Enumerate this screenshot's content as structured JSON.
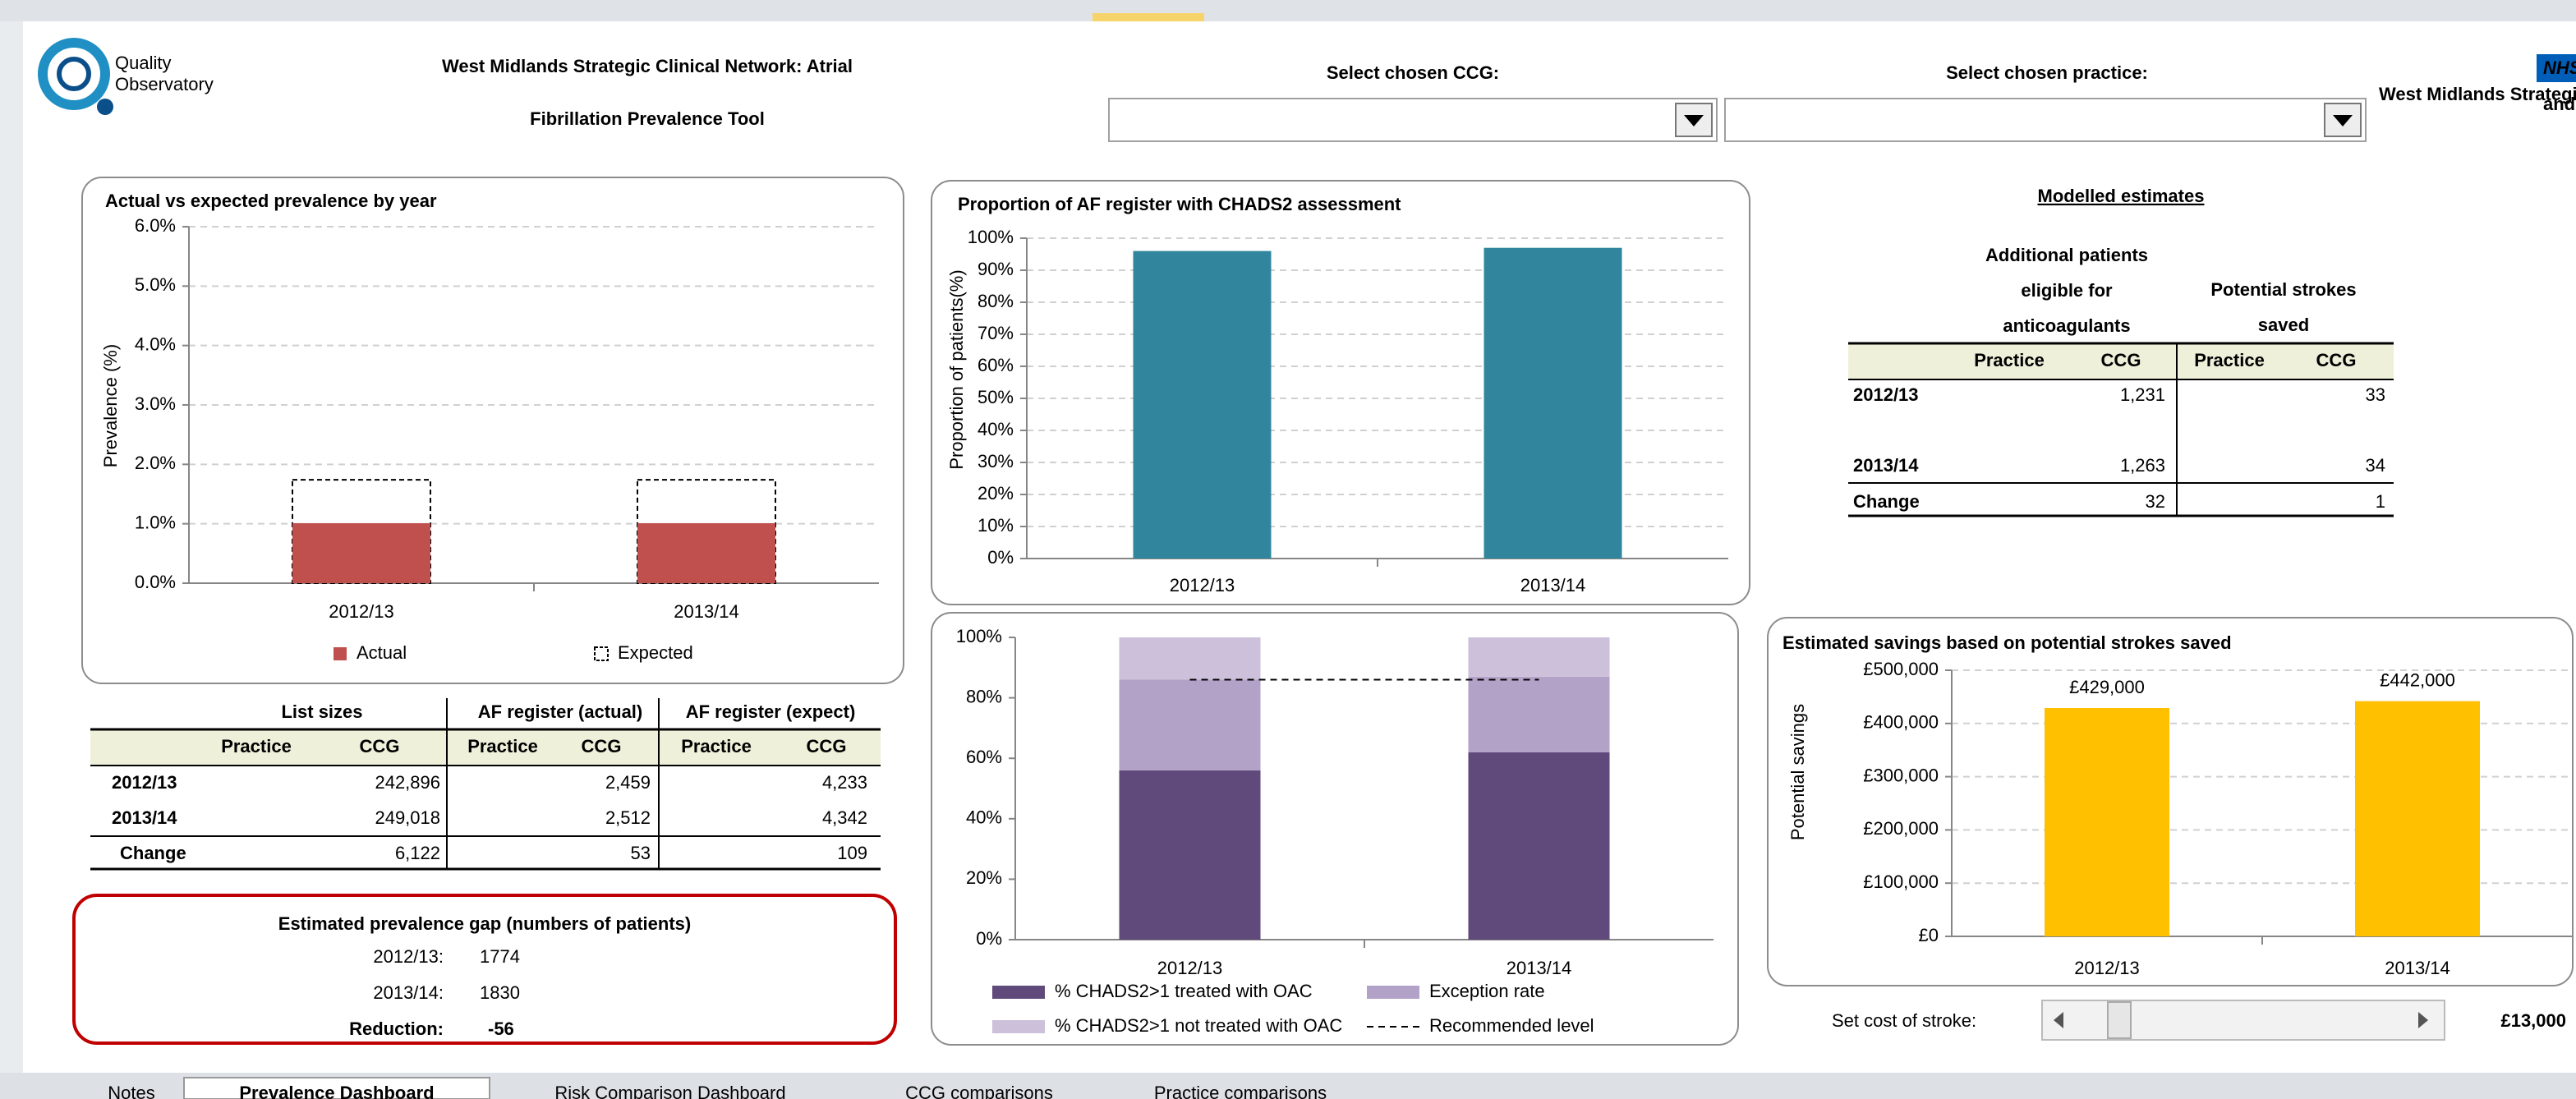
{
  "header": {
    "logo_lines": [
      "Quality",
      "Observatory"
    ],
    "title_lines": [
      "West Midlands Strategic Clinical Network: Atrial",
      "Fibrillation Prevalence Tool"
    ],
    "ccg_label": "Select chosen  CCG:",
    "practice_label": "Select chosen  practice:",
    "nhs": "NHS",
    "nhs_sub": [
      "West Midlands Strategic Clinical Net",
      "and Se"
    ]
  },
  "charts": [
    {
      "type": "bar",
      "overlap": true,
      "title": "Actual  vs expected prevalence  by year",
      "y_label": "Prevalence (%)",
      "categories": [
        "2012/13",
        "2013/14"
      ],
      "series": [
        {
          "name": "Actual",
          "color": "#c0504d",
          "values": [
            1.01,
            1.01
          ]
        },
        {
          "name": "Expected",
          "color": "#ffffff",
          "outline": "dashed",
          "values": [
            1.74,
            1.74
          ]
        }
      ],
      "ylim": [
        0,
        6
      ],
      "yticks": [
        {
          "value": 0,
          "label": "0.0%"
        },
        {
          "value": 1,
          "label": "1.0%"
        },
        {
          "value": 2,
          "label": "2.0%"
        },
        {
          "value": 3,
          "label": "3.0%"
        },
        {
          "value": 4,
          "label": "4.0%"
        },
        {
          "value": 5,
          "label": "5.0%"
        },
        {
          "value": 6,
          "label": "6.0%"
        }
      ],
      "grid": true
    },
    {
      "type": "bar",
      "title": "Proportion  of AF register with CHADS2 assessment",
      "y_label": "Proportion of patients(%)",
      "categories": [
        "2012/13",
        "2013/14"
      ],
      "series": [
        {
          "name": "Proportion",
          "color": "#31859c",
          "values": [
            96,
            97
          ]
        }
      ],
      "ylim": [
        0,
        100
      ],
      "yticks": [
        {
          "value": 0,
          "label": "0%"
        },
        {
          "value": 10,
          "label": "10%"
        },
        {
          "value": 20,
          "label": "20%"
        },
        {
          "value": 30,
          "label": "30%"
        },
        {
          "value": 40,
          "label": "40%"
        },
        {
          "value": 50,
          "label": "50%"
        },
        {
          "value": 60,
          "label": "60%"
        },
        {
          "value": 70,
          "label": "70%"
        },
        {
          "value": 80,
          "label": "80%"
        },
        {
          "value": 90,
          "label": "90%"
        },
        {
          "value": 100,
          "label": "100%"
        }
      ],
      "grid": true
    },
    {
      "type": "stacked_bar",
      "categories": [
        "2012/13",
        "2013/14"
      ],
      "series": [
        {
          "name": "% CHADS2>1 treated with OAC",
          "color": "#604a7b",
          "values": [
            56,
            62
          ]
        },
        {
          "name": "Exception rate",
          "color": "#b3a2c7",
          "values": [
            30,
            25
          ]
        },
        {
          "name": "% CHADS2>1 not treated with OAC",
          "color": "#ccc0da",
          "values": [
            14,
            13
          ]
        }
      ],
      "reference_line": {
        "name": "Recommended level",
        "value": 86
      },
      "ylim": [
        0,
        100
      ],
      "yticks": [
        {
          "value": 0,
          "label": "0%"
        },
        {
          "value": 20,
          "label": "20%"
        },
        {
          "value": 40,
          "label": "40%"
        },
        {
          "value": 60,
          "label": "60%"
        },
        {
          "value": 80,
          "label": "80%"
        },
        {
          "value": 100,
          "label": "100%"
        }
      ],
      "grid": false
    },
    {
      "type": "bar",
      "title": "Estimated savings based on potential  strokes saved",
      "y_label": "Potential savings",
      "categories": [
        "2012/13",
        "2013/14"
      ],
      "series": [
        {
          "name": "Savings",
          "color": "#ffc000",
          "values": [
            429000,
            442000
          ],
          "value_labels": [
            "£429,000",
            "£442,000"
          ]
        }
      ],
      "ylim": [
        0,
        500000
      ],
      "yticks": [
        {
          "value": 0,
          "label": "£0"
        },
        {
          "value": 100000,
          "label": "£100,000"
        },
        {
          "value": 200000,
          "label": "£200,000"
        },
        {
          "value": 300000,
          "label": "£300,000"
        },
        {
          "value": 400000,
          "label": "£400,000"
        },
        {
          "value": 500000,
          "label": "£500,000"
        }
      ],
      "grid": true
    }
  ],
  "list_table": {
    "groups": [
      "List sizes",
      "AF register (actual)",
      "AF register (expect)"
    ],
    "subheaders": [
      "Practice",
      "CCG",
      "Practice",
      "CCG",
      "Practice",
      "CCG"
    ],
    "rows": [
      {
        "label": "2012/13",
        "values": [
          "242,896",
          "2,459",
          "4,233"
        ]
      },
      {
        "label": "2013/14",
        "values": [
          "249,018",
          "2,512",
          "4,342"
        ]
      },
      {
        "label": "Change",
        "values": [
          "6,122",
          "53",
          "109"
        ]
      }
    ]
  },
  "modelled": {
    "title": "Modelled estimates",
    "groups": [
      {
        "lines": [
          "Additional patients",
          "eligible for",
          "anticoagulants"
        ]
      },
      {
        "lines": [
          "Potential strokes",
          "saved"
        ]
      }
    ],
    "subheaders": [
      "Practice",
      "CCG",
      "Practice",
      "CCG"
    ],
    "rows": [
      {
        "label": "2012/13",
        "values": [
          "1,231",
          "33"
        ]
      },
      {
        "label": "2013/14",
        "values": [
          "1,263",
          "34"
        ]
      },
      {
        "label": "Change",
        "values": [
          "32",
          "1"
        ]
      }
    ]
  },
  "gap": {
    "title": "Estimated prevalence gap (numbers of patients)",
    "rows": [
      {
        "label": "2012/13:",
        "value": "1774"
      },
      {
        "label": "2013/14:",
        "value": "1830"
      },
      {
        "label": "Reduction:",
        "value": "-56"
      }
    ]
  },
  "slider": {
    "label": "Set cost of stroke:",
    "value": "£13,000"
  },
  "tabs": [
    "Notes",
    "Prevalence Dashboard",
    "Risk Comparison Dashboard",
    "CCG comparisons",
    "Practice comparisons"
  ]
}
